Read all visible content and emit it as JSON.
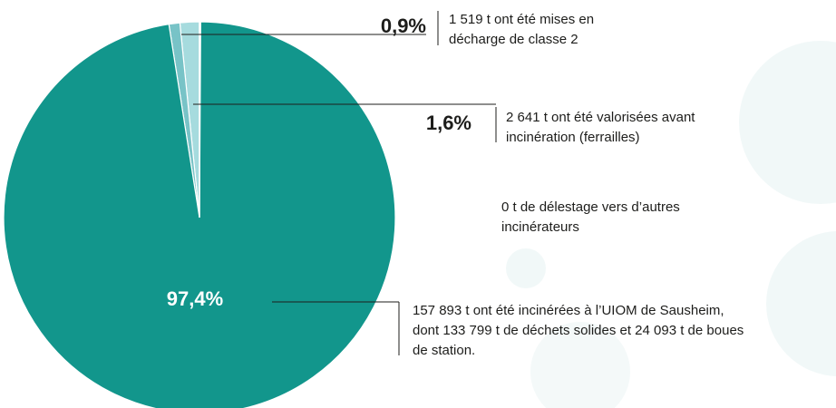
{
  "chart_data": {
    "type": "pie",
    "values": [
      1.6,
      0.9,
      97.4
    ],
    "value_labels": [
      "1,6%",
      "0,9%",
      "97,4%"
    ],
    "labels": [
      [
        "2 641 t ont été valorisées avant",
        "incinération (ferrailles)"
      ],
      [
        "1 519 t ont été mises en",
        "décharge de classe 2"
      ],
      [
        "157 893 t ont été incinérées à l’UIOM de Sausheim,",
        "dont 133 799 t de déchets solides et 24 093 t de boues",
        "de station."
      ]
    ],
    "colors": [
      "#a6dbde",
      "#78c3c7",
      "#12968c"
    ],
    "annotation": [
      "0 t de délestage vers d’autres",
      "incinérateurs"
    ]
  }
}
